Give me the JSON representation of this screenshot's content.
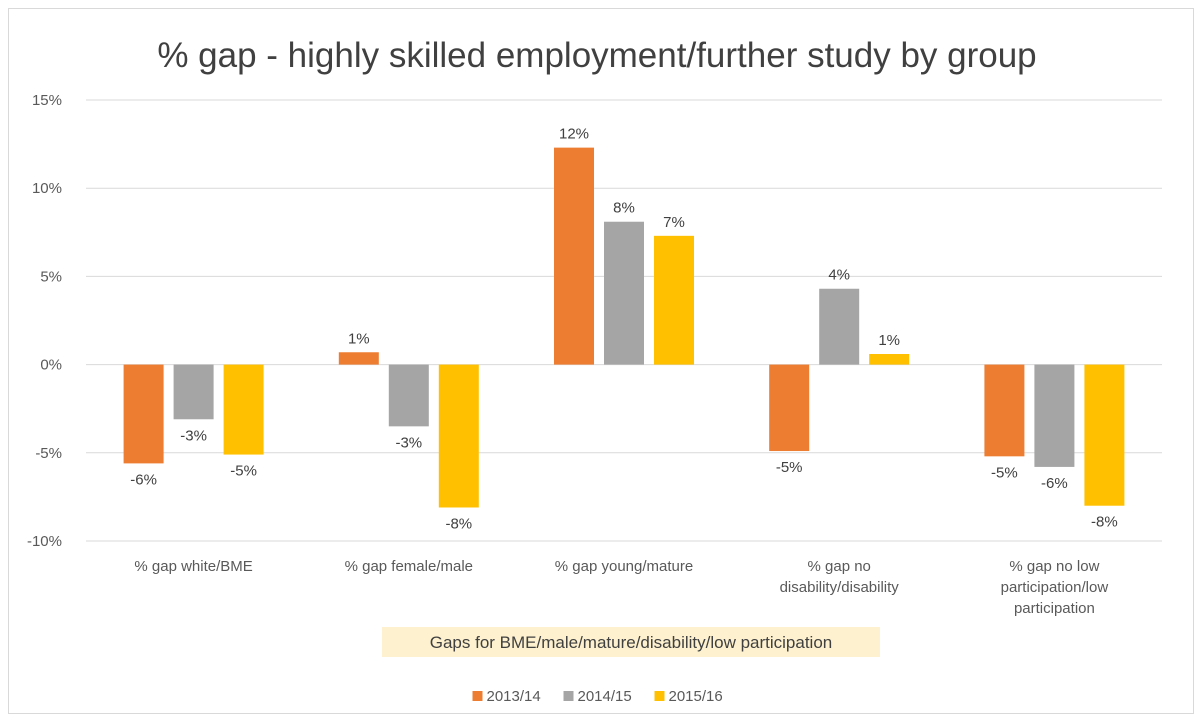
{
  "chart_data": {
    "type": "bar",
    "title": "% gap - highly skilled employment/further study by group",
    "categories": [
      [
        "% gap white/BME"
      ],
      [
        "% gap female/male"
      ],
      [
        "% gap young/mature"
      ],
      [
        "% gap no",
        "disability/disability"
      ],
      [
        "% gap no low",
        "participation/low",
        "participation"
      ]
    ],
    "series": [
      {
        "name": "2013/14",
        "color": "#ED7D31",
        "values": [
          -5.6,
          0.7,
          12.3,
          -4.9,
          -5.2
        ],
        "labels": [
          "-6%",
          "1%",
          "12%",
          "-5%",
          "-5%"
        ]
      },
      {
        "name": "2014/15",
        "color": "#A5A5A5",
        "values": [
          -3.1,
          -3.5,
          8.1,
          4.3,
          -5.8
        ],
        "labels": [
          "-3%",
          "-3%",
          "8%",
          "4%",
          "-6%"
        ]
      },
      {
        "name": "2015/16",
        "color": "#FFC000",
        "values": [
          -5.1,
          -8.1,
          7.3,
          0.6,
          -8.0
        ],
        "labels": [
          "-5%",
          "-8%",
          "7%",
          "1%",
          "-8%"
        ]
      }
    ],
    "ylim": [
      -10,
      15
    ],
    "yticks": [
      15,
      10,
      5,
      0,
      -5,
      -10
    ],
    "ytick_labels": [
      "15%",
      "10%",
      "5%",
      "0%",
      "-5%",
      "-10%"
    ],
    "grid": true,
    "legend_position": "bottom",
    "annotation": "Gaps for BME/male/mature/disability/low participation",
    "annotation_bg": "#FDF1CF"
  }
}
